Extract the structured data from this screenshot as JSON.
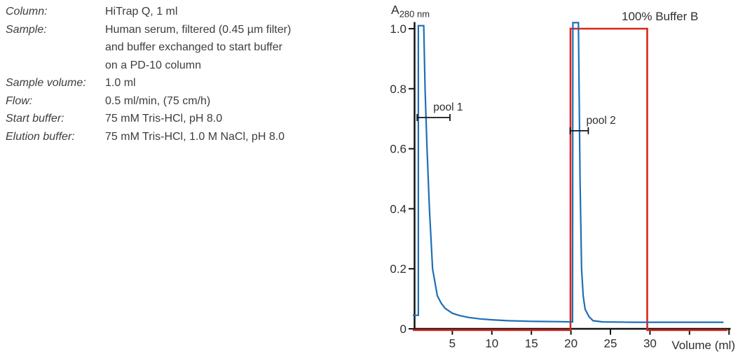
{
  "conditions": {
    "rows": [
      {
        "label": "Column:",
        "value": "HiTrap Q, 1 ml"
      },
      {
        "label": "Sample:",
        "value": "Human serum, filtered (0.45 µm filter)\nand buffer exchanged to start buffer\non a PD-10 column"
      },
      {
        "label": "Sample volume:",
        "value": "1.0 ml"
      },
      {
        "label": "Flow:",
        "value": "0.5 ml/min, (75 cm/h)"
      },
      {
        "label": "Start buffer:",
        "value": "75 mM Tris-HCl, pH 8.0"
      },
      {
        "label": "Elution buffer:",
        "value": "75 mM Tris-HCl, 1.0 M NaCl, pH 8.0"
      }
    ]
  },
  "chart_data": {
    "type": "line",
    "title": "",
    "x_axis_label": "Volume (ml)",
    "y_axis_label": {
      "main": "A",
      "sub": "280 nm"
    },
    "top_right_label": "100% Buffer B",
    "xlim": [
      0,
      40.2
    ],
    "ylim": [
      0,
      1.05
    ],
    "grid": false,
    "legend_position": "none",
    "x_ticks": [
      {
        "v": 5,
        "label": "5"
      },
      {
        "v": 10,
        "label": "10"
      },
      {
        "v": 15,
        "label": "15"
      },
      {
        "v": 20,
        "label": "20"
      },
      {
        "v": 25,
        "label": "25"
      },
      {
        "v": 30,
        "label": "30"
      },
      {
        "v": 35,
        "label": ""
      },
      {
        "v": 40,
        "label": ""
      }
    ],
    "y_ticks": [
      {
        "v": 0,
        "label": "0"
      },
      {
        "v": 0.2,
        "label": "0.2"
      },
      {
        "v": 0.4,
        "label": "0.4"
      },
      {
        "v": 0.6,
        "label": "0.6"
      },
      {
        "v": 0.8,
        "label": "0.8"
      },
      {
        "v": 1.0,
        "label": "1.0"
      }
    ],
    "series": [
      {
        "name": "buffer-b-percent",
        "color": "#d9251c",
        "unit": "% Buffer B",
        "percent_to_au": 0.01,
        "points": [
          [
            0,
            0
          ],
          [
            19.95,
            0
          ],
          [
            19.95,
            100
          ],
          [
            29.65,
            100
          ],
          [
            29.65,
            0
          ],
          [
            39.8,
            0
          ]
        ]
      },
      {
        "name": "a280-absorbance",
        "color": "#1d6fb8",
        "unit": "AU",
        "points": [
          [
            0,
            0.045
          ],
          [
            0.7,
            0.045
          ],
          [
            0.7,
            1.01
          ],
          [
            1.38,
            1.01
          ],
          [
            1.55,
            0.8
          ],
          [
            1.8,
            0.6
          ],
          [
            2.1,
            0.4
          ],
          [
            2.5,
            0.2
          ],
          [
            3.1,
            0.11
          ],
          [
            3.6,
            0.085
          ],
          [
            4.1,
            0.068
          ],
          [
            5.0,
            0.052
          ],
          [
            5.8,
            0.045
          ],
          [
            7.0,
            0.038
          ],
          [
            8.5,
            0.033
          ],
          [
            10,
            0.03
          ],
          [
            12,
            0.027
          ],
          [
            15,
            0.025
          ],
          [
            18,
            0.024
          ],
          [
            20.2,
            0.023
          ],
          [
            20.25,
            1.02
          ],
          [
            20.95,
            1.02
          ],
          [
            21.15,
            0.5
          ],
          [
            21.35,
            0.2
          ],
          [
            21.55,
            0.11
          ],
          [
            21.8,
            0.065
          ],
          [
            22.3,
            0.04
          ],
          [
            22.8,
            0.027
          ],
          [
            24,
            0.023
          ],
          [
            28,
            0.022
          ],
          [
            33,
            0.022
          ],
          [
            39.3,
            0.022
          ]
        ]
      }
    ],
    "pools": [
      {
        "label": "pool 1",
        "from_ml": 0.55,
        "to_ml": 4.7,
        "y_au": 0.704
      },
      {
        "label": "pool 2",
        "from_ml": 19.9,
        "to_ml": 22.2,
        "y_au": 0.66
      }
    ]
  },
  "colors": {
    "curve_blue": "#1d6fb8",
    "curve_red": "#d9251c",
    "axis": "#141414",
    "text": "#3d3d3d"
  }
}
